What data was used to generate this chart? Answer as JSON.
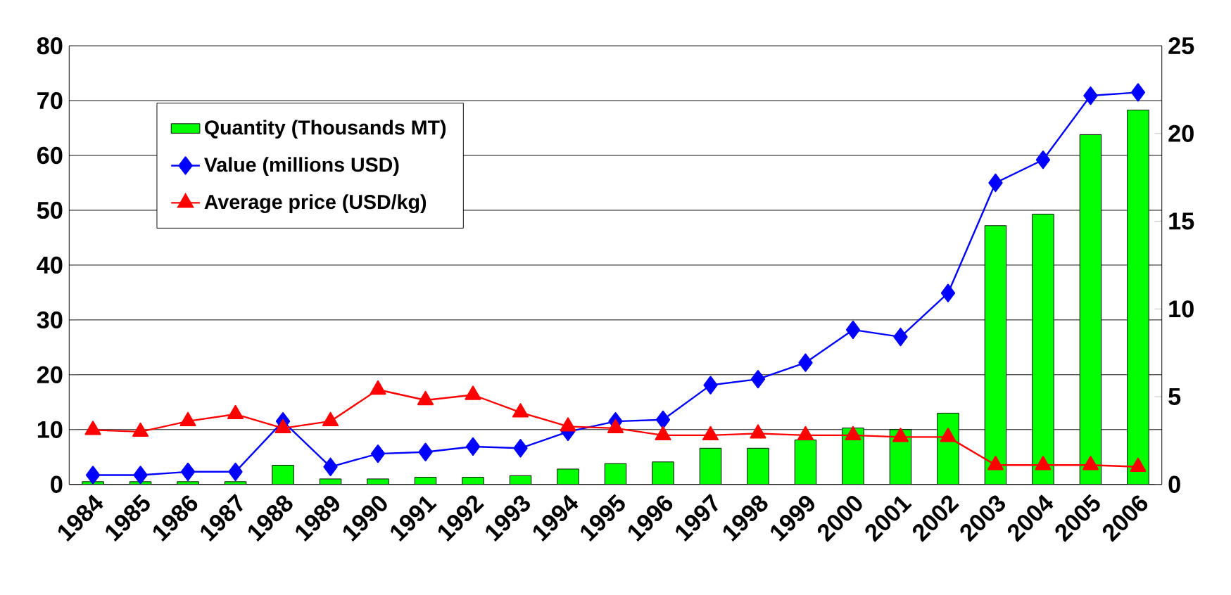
{
  "chart_data": {
    "type": "bar",
    "categories": [
      "1984",
      "1985",
      "1986",
      "1987",
      "1988",
      "1989",
      "1990",
      "1991",
      "1992",
      "1993",
      "1994",
      "1995",
      "1996",
      "1997",
      "1998",
      "1999",
      "2000",
      "2001",
      "2002",
      "2003",
      "2004",
      "2005",
      "2006"
    ],
    "series": [
      {
        "name": "Quantity (Thousands MT)",
        "color": "#00ff00",
        "values": [
          0.5,
          0.5,
          0.5,
          0.5,
          3.5,
          1.0,
          1.0,
          1.3,
          1.3,
          1.6,
          2.8,
          3.8,
          4.1,
          6.6,
          6.6,
          8.1,
          10.3,
          10.0,
          13.0,
          47.2,
          49.3,
          63.8,
          68.3
        ]
      },
      {
        "name": "Value (millions USD)",
        "type": "line",
        "color": "#0000ff",
        "marker": "diamond",
        "values": [
          1.7,
          1.7,
          2.3,
          2.3,
          11.5,
          3.2,
          5.6,
          5.9,
          6.9,
          6.6,
          9.6,
          11.5,
          11.8,
          18.1,
          19.2,
          22.2,
          28.2,
          26.9,
          34.9,
          55.0,
          59.2,
          70.9,
          71.5
        ]
      },
      {
        "name": "Average price  (USD/kg)",
        "type": "line",
        "color": "#ff0000",
        "marker": "triangle",
        "axis": "y2",
        "values": [
          3.1,
          3.0,
          3.6,
          4.0,
          3.2,
          3.6,
          5.4,
          4.8,
          5.1,
          4.1,
          3.3,
          3.2,
          2.8,
          2.8,
          2.9,
          2.8,
          2.8,
          2.7,
          2.7,
          1.1,
          1.1,
          1.1,
          1.0
        ]
      }
    ],
    "ylim": [
      0,
      80
    ],
    "yticks": [
      0,
      10,
      20,
      30,
      40,
      50,
      60,
      70,
      80
    ],
    "y2lim": [
      0,
      25
    ],
    "y2ticks": [
      0,
      5,
      10,
      15,
      20,
      25
    ],
    "grid": "y",
    "legend": "top left",
    "line_style": "solid"
  }
}
